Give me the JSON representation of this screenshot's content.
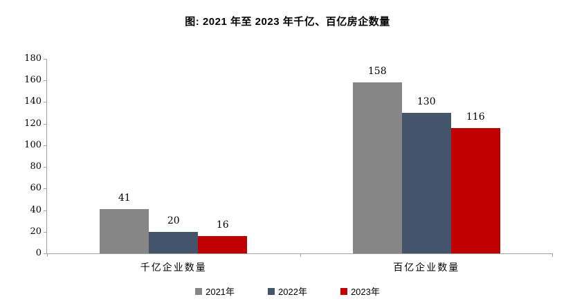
{
  "chart_data": {
    "type": "bar",
    "title": "图: 2021 年至 2023 年千亿、百亿房企数量",
    "categories": [
      "千亿企业数量",
      "百亿企业数量"
    ],
    "series": [
      {
        "name": "2021年",
        "color": "#868686",
        "values": [
          41,
          158
        ]
      },
      {
        "name": "2022年",
        "color": "#44546A",
        "values": [
          20,
          130
        ]
      },
      {
        "name": "2023年",
        "color": "#C00000",
        "values": [
          16,
          116
        ]
      }
    ],
    "ylim": [
      0,
      180
    ],
    "yticks": [
      0,
      20,
      40,
      60,
      80,
      100,
      120,
      140,
      160,
      180
    ],
    "grid": false,
    "value_labels": true,
    "legend_position": "bottom",
    "axis_color": "#A0A0A0",
    "text_color": "#000000",
    "background": "#FFFFFF"
  }
}
